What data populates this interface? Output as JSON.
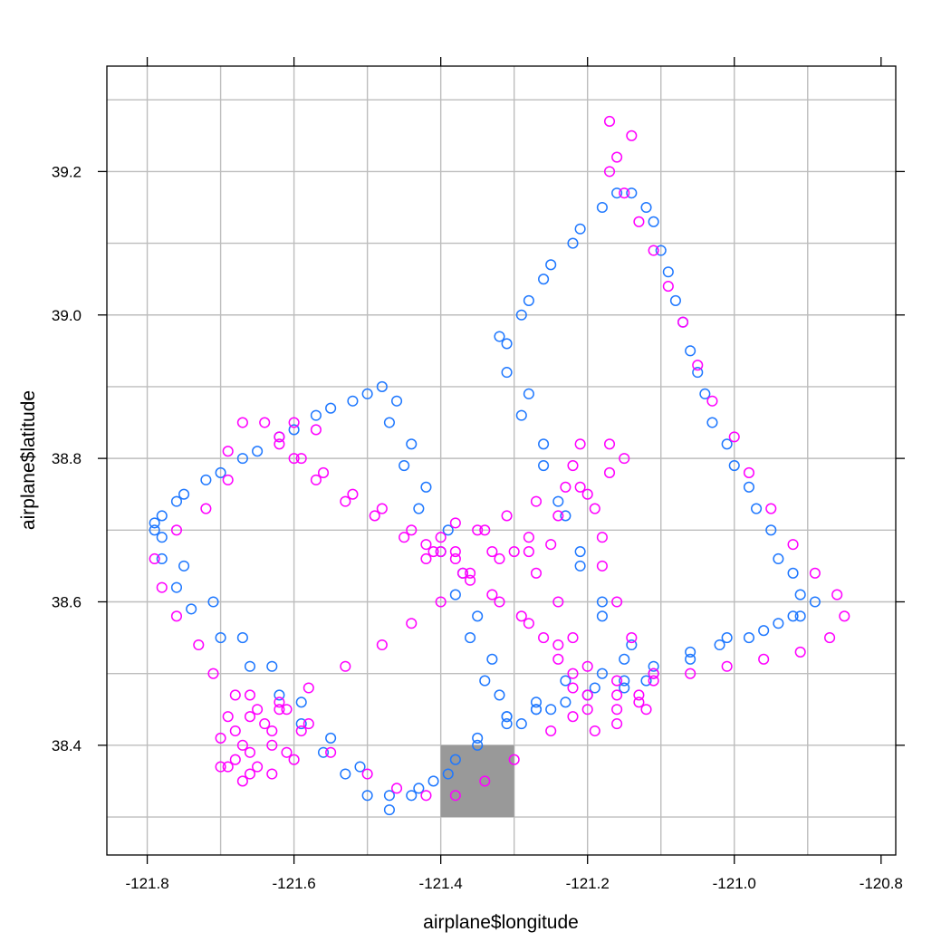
{
  "chart_data": {
    "type": "scatter",
    "xlabel": "airplane$longitude",
    "ylabel": "airplane$latitude",
    "xlim": [
      -121.855,
      -120.78
    ],
    "ylim": [
      38.247,
      39.347
    ],
    "x_ticks": [
      -121.8,
      -121.6,
      -121.4,
      -121.2,
      -121.0,
      -120.8
    ],
    "x_tick_labels": [
      "-121.8",
      "-121.6",
      "-121.4",
      "-121.2",
      "-121.0",
      "-120.8"
    ],
    "y_ticks": [
      38.4,
      38.6,
      38.8,
      39.0,
      39.2
    ],
    "y_tick_labels": [
      "38.4",
      "38.6",
      "38.8",
      "39.0",
      "39.2"
    ],
    "grid": true,
    "grid_x": [
      -121.8,
      -121.7,
      -121.6,
      -121.5,
      -121.4,
      -121.3,
      -121.2,
      -121.1,
      -121.0,
      -120.9
    ],
    "grid_y": [
      38.3,
      38.4,
      38.5,
      38.6,
      38.7,
      38.8,
      38.9,
      39.0,
      39.1,
      39.2,
      39.3
    ],
    "highlight_box": {
      "x": [
        -121.4,
        -121.3
      ],
      "y": [
        38.3,
        38.4
      ],
      "color": "#999999"
    },
    "series": [
      {
        "color": "#1F78FF",
        "points": [
          [
            -121.79,
            38.7
          ],
          [
            -121.78,
            38.66
          ],
          [
            -121.76,
            38.62
          ],
          [
            -121.74,
            38.59
          ],
          [
            -121.7,
            38.55
          ],
          [
            -121.66,
            38.51
          ],
          [
            -121.62,
            38.47
          ],
          [
            -121.59,
            38.43
          ],
          [
            -121.56,
            38.39
          ],
          [
            -121.53,
            38.36
          ],
          [
            -121.5,
            38.33
          ],
          [
            -121.47,
            38.31
          ],
          [
            -121.44,
            38.33
          ],
          [
            -121.41,
            38.35
          ],
          [
            -121.38,
            38.38
          ],
          [
            -121.35,
            38.41
          ],
          [
            -121.31,
            38.44
          ],
          [
            -121.27,
            38.45
          ],
          [
            -121.23,
            38.46
          ],
          [
            -121.19,
            38.48
          ],
          [
            -121.15,
            38.49
          ],
          [
            -121.11,
            38.51
          ],
          [
            -121.06,
            38.52
          ],
          [
            -121.02,
            38.54
          ],
          [
            -120.98,
            38.55
          ],
          [
            -120.94,
            38.57
          ],
          [
            -120.91,
            38.58
          ],
          [
            -120.91,
            38.61
          ],
          [
            -120.94,
            38.66
          ],
          [
            -120.97,
            38.73
          ],
          [
            -121.0,
            38.79
          ],
          [
            -121.03,
            38.85
          ],
          [
            -121.05,
            38.92
          ],
          [
            -121.07,
            38.99
          ],
          [
            -121.09,
            39.06
          ],
          [
            -121.11,
            39.13
          ],
          [
            -121.14,
            39.17
          ],
          [
            -121.18,
            39.15
          ],
          [
            -121.22,
            39.1
          ],
          [
            -121.26,
            39.05
          ],
          [
            -121.29,
            39.0
          ],
          [
            -121.32,
            38.97
          ],
          [
            -121.31,
            38.92
          ],
          [
            -121.29,
            38.86
          ],
          [
            -121.26,
            38.79
          ],
          [
            -121.23,
            38.72
          ],
          [
            -121.21,
            38.65
          ],
          [
            -121.18,
            38.58
          ],
          [
            -121.15,
            38.52
          ],
          [
            -121.12,
            38.49
          ],
          [
            -121.15,
            38.48
          ],
          [
            -121.2,
            38.47
          ],
          [
            -121.25,
            38.45
          ],
          [
            -121.29,
            38.43
          ],
          [
            -121.32,
            38.47
          ],
          [
            -121.33,
            38.52
          ],
          [
            -121.35,
            38.58
          ],
          [
            -121.37,
            38.64
          ],
          [
            -121.39,
            38.7
          ],
          [
            -121.42,
            38.76
          ],
          [
            -121.44,
            38.82
          ],
          [
            -121.46,
            38.88
          ],
          [
            -121.48,
            38.9
          ],
          [
            -121.52,
            38.88
          ],
          [
            -121.57,
            38.86
          ],
          [
            -121.62,
            38.83
          ],
          [
            -121.67,
            38.8
          ],
          [
            -121.72,
            38.77
          ],
          [
            -121.76,
            38.74
          ],
          [
            -121.79,
            38.71
          ],
          [
            -121.78,
            38.69
          ],
          [
            -121.75,
            38.65
          ],
          [
            -121.71,
            38.6
          ],
          [
            -121.67,
            38.55
          ],
          [
            -121.63,
            38.51
          ],
          [
            -121.59,
            38.46
          ],
          [
            -121.55,
            38.41
          ],
          [
            -121.51,
            38.37
          ],
          [
            -121.47,
            38.33
          ],
          [
            -121.43,
            38.34
          ],
          [
            -121.39,
            38.36
          ],
          [
            -121.35,
            38.4
          ],
          [
            -121.31,
            38.43
          ],
          [
            -121.27,
            38.45
          ],
          [
            -121.11,
            38.5
          ],
          [
            -121.06,
            38.53
          ],
          [
            -121.01,
            38.55
          ],
          [
            -120.96,
            38.56
          ],
          [
            -120.92,
            38.58
          ],
          [
            -120.89,
            38.6
          ],
          [
            -120.92,
            38.64
          ],
          [
            -120.95,
            38.7
          ],
          [
            -120.98,
            38.76
          ],
          [
            -121.01,
            38.82
          ],
          [
            -121.04,
            38.89
          ],
          [
            -121.06,
            38.95
          ],
          [
            -121.08,
            39.02
          ],
          [
            -121.1,
            39.09
          ],
          [
            -121.12,
            39.15
          ],
          [
            -121.16,
            39.17
          ],
          [
            -121.21,
            39.12
          ],
          [
            -121.25,
            39.07
          ],
          [
            -121.28,
            39.02
          ],
          [
            -121.31,
            38.96
          ],
          [
            -121.28,
            38.89
          ],
          [
            -121.26,
            38.82
          ],
          [
            -121.24,
            38.74
          ],
          [
            -121.21,
            38.67
          ],
          [
            -121.18,
            38.6
          ],
          [
            -121.14,
            38.54
          ],
          [
            -121.18,
            38.5
          ],
          [
            -121.23,
            38.49
          ],
          [
            -121.27,
            38.46
          ],
          [
            -121.31,
            38.44
          ],
          [
            -121.34,
            38.49
          ],
          [
            -121.36,
            38.55
          ],
          [
            -121.38,
            38.61
          ],
          [
            -121.4,
            38.67
          ],
          [
            -121.43,
            38.73
          ],
          [
            -121.45,
            38.79
          ],
          [
            -121.47,
            38.85
          ],
          [
            -121.5,
            38.89
          ],
          [
            -121.55,
            38.87
          ],
          [
            -121.6,
            38.84
          ],
          [
            -121.65,
            38.81
          ],
          [
            -121.7,
            38.78
          ],
          [
            -121.75,
            38.75
          ],
          [
            -121.78,
            38.72
          ]
        ]
      },
      {
        "color": "#FF00FF",
        "points": [
          [
            -121.17,
            39.27
          ],
          [
            -121.14,
            39.25
          ],
          [
            -121.16,
            39.22
          ],
          [
            -121.17,
            39.2
          ],
          [
            -121.15,
            39.17
          ],
          [
            -121.13,
            39.13
          ],
          [
            -121.11,
            39.09
          ],
          [
            -121.09,
            39.04
          ],
          [
            -121.07,
            38.99
          ],
          [
            -121.05,
            38.93
          ],
          [
            -121.03,
            38.88
          ],
          [
            -121.0,
            38.83
          ],
          [
            -120.98,
            38.78
          ],
          [
            -120.95,
            38.73
          ],
          [
            -120.92,
            38.68
          ],
          [
            -120.89,
            38.64
          ],
          [
            -120.86,
            38.61
          ],
          [
            -120.85,
            38.58
          ],
          [
            -120.87,
            38.55
          ],
          [
            -120.91,
            38.53
          ],
          [
            -120.96,
            38.52
          ],
          [
            -121.01,
            38.51
          ],
          [
            -121.06,
            38.5
          ],
          [
            -121.11,
            38.49
          ],
          [
            -121.16,
            38.47
          ],
          [
            -121.2,
            38.45
          ],
          [
            -121.25,
            38.42
          ],
          [
            -121.3,
            38.38
          ],
          [
            -121.34,
            38.35
          ],
          [
            -121.38,
            38.33
          ],
          [
            -121.42,
            38.33
          ],
          [
            -121.46,
            38.34
          ],
          [
            -121.5,
            38.36
          ],
          [
            -121.55,
            38.39
          ],
          [
            -121.58,
            38.43
          ],
          [
            -121.61,
            38.45
          ],
          [
            -121.64,
            38.43
          ],
          [
            -121.67,
            38.4
          ],
          [
            -121.69,
            38.37
          ],
          [
            -121.67,
            38.35
          ],
          [
            -121.63,
            38.36
          ],
          [
            -121.61,
            38.39
          ],
          [
            -121.63,
            38.42
          ],
          [
            -121.66,
            38.44
          ],
          [
            -121.68,
            38.47
          ],
          [
            -121.71,
            38.5
          ],
          [
            -121.73,
            38.54
          ],
          [
            -121.76,
            38.58
          ],
          [
            -121.78,
            38.62
          ],
          [
            -121.79,
            38.66
          ],
          [
            -121.76,
            38.7
          ],
          [
            -121.72,
            38.73
          ],
          [
            -121.69,
            38.77
          ],
          [
            -121.69,
            38.81
          ],
          [
            -121.67,
            38.85
          ],
          [
            -121.64,
            38.85
          ],
          [
            -121.62,
            38.83
          ],
          [
            -121.6,
            38.8
          ],
          [
            -121.56,
            38.78
          ],
          [
            -121.52,
            38.75
          ],
          [
            -121.48,
            38.73
          ],
          [
            -121.44,
            38.7
          ],
          [
            -121.4,
            38.67
          ],
          [
            -121.36,
            38.64
          ],
          [
            -121.32,
            38.6
          ],
          [
            -121.28,
            38.57
          ],
          [
            -121.24,
            38.54
          ],
          [
            -121.2,
            38.51
          ],
          [
            -121.16,
            38.49
          ],
          [
            -121.13,
            38.47
          ],
          [
            -121.12,
            38.45
          ],
          [
            -121.16,
            38.43
          ],
          [
            -121.19,
            38.42
          ],
          [
            -121.22,
            38.44
          ],
          [
            -121.22,
            38.48
          ],
          [
            -121.24,
            38.52
          ],
          [
            -121.26,
            38.55
          ],
          [
            -121.29,
            38.58
          ],
          [
            -121.33,
            38.61
          ],
          [
            -121.37,
            38.64
          ],
          [
            -121.41,
            38.67
          ],
          [
            -121.45,
            38.69
          ],
          [
            -121.49,
            38.72
          ],
          [
            -121.53,
            38.74
          ],
          [
            -121.57,
            38.77
          ],
          [
            -121.59,
            38.8
          ],
          [
            -121.57,
            38.84
          ],
          [
            -121.6,
            38.85
          ],
          [
            -121.62,
            38.82
          ],
          [
            -121.62,
            38.45
          ],
          [
            -121.58,
            38.48
          ],
          [
            -121.53,
            38.51
          ],
          [
            -121.48,
            38.54
          ],
          [
            -121.44,
            38.57
          ],
          [
            -121.4,
            38.6
          ],
          [
            -121.36,
            38.63
          ],
          [
            -121.32,
            38.66
          ],
          [
            -121.28,
            38.69
          ],
          [
            -121.24,
            38.72
          ],
          [
            -121.2,
            38.75
          ],
          [
            -121.17,
            38.78
          ],
          [
            -121.15,
            38.8
          ],
          [
            -121.17,
            38.82
          ],
          [
            -121.21,
            38.82
          ],
          [
            -121.22,
            38.79
          ],
          [
            -121.21,
            38.76
          ],
          [
            -121.19,
            38.73
          ],
          [
            -121.18,
            38.69
          ],
          [
            -121.18,
            38.65
          ],
          [
            -121.16,
            38.6
          ],
          [
            -121.14,
            38.55
          ],
          [
            -121.11,
            38.5
          ],
          [
            -121.13,
            38.46
          ],
          [
            -121.16,
            38.45
          ],
          [
            -121.2,
            38.47
          ],
          [
            -121.22,
            38.5
          ],
          [
            -121.22,
            38.55
          ],
          [
            -121.24,
            38.6
          ],
          [
            -121.27,
            38.64
          ],
          [
            -121.3,
            38.67
          ],
          [
            -121.34,
            38.7
          ],
          [
            -121.38,
            38.71
          ],
          [
            -121.4,
            38.69
          ],
          [
            -121.42,
            38.66
          ],
          [
            -121.38,
            38.67
          ],
          [
            -121.35,
            38.7
          ],
          [
            -121.31,
            38.72
          ],
          [
            -121.27,
            38.74
          ],
          [
            -121.23,
            38.76
          ],
          [
            -121.25,
            38.68
          ],
          [
            -121.28,
            38.67
          ],
          [
            -121.33,
            38.67
          ],
          [
            -121.38,
            38.66
          ],
          [
            -121.42,
            38.68
          ],
          [
            -121.65,
            38.45
          ],
          [
            -121.68,
            38.42
          ],
          [
            -121.68,
            38.38
          ],
          [
            -121.65,
            38.37
          ],
          [
            -121.6,
            38.38
          ],
          [
            -121.59,
            38.42
          ],
          [
            -121.62,
            38.46
          ],
          [
            -121.66,
            38.47
          ],
          [
            -121.69,
            38.44
          ],
          [
            -121.7,
            38.41
          ],
          [
            -121.66,
            38.39
          ],
          [
            -121.63,
            38.4
          ],
          [
            -121.66,
            38.36
          ],
          [
            -121.7,
            38.37
          ]
        ]
      }
    ]
  }
}
